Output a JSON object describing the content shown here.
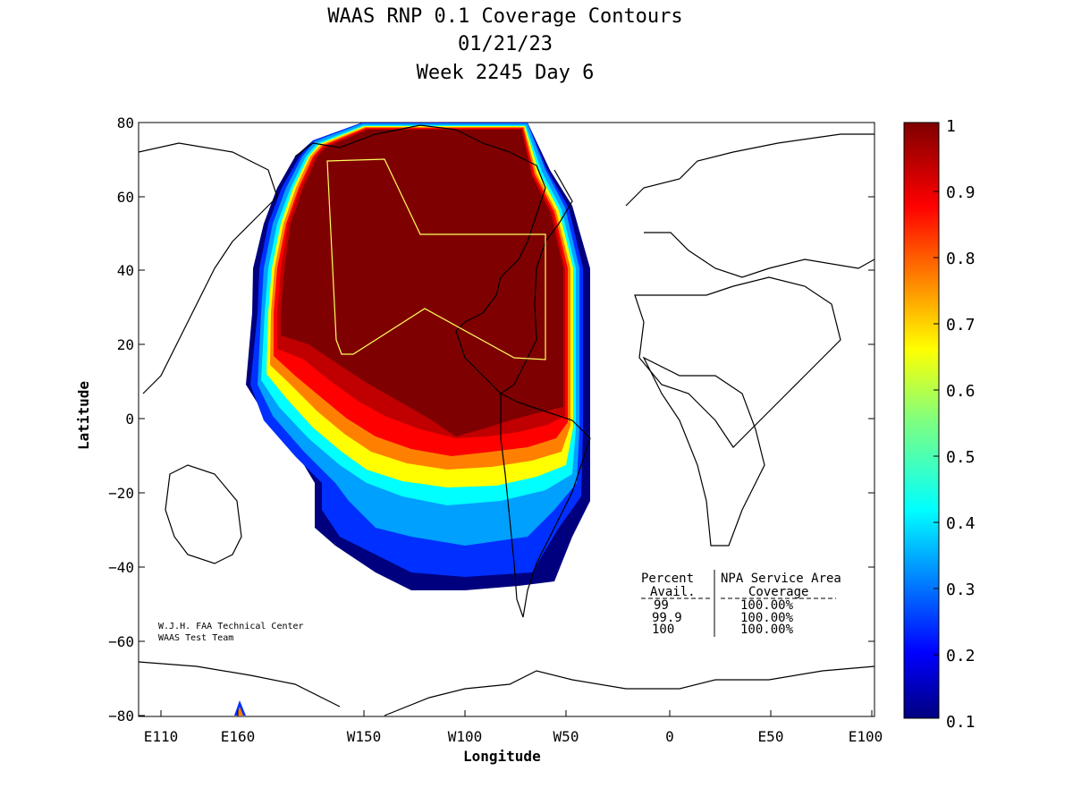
{
  "title": {
    "line1": "WAAS RNP 0.1 Coverage Contours",
    "line2": "01/21/23",
    "line3": "Week 2245 Day 6"
  },
  "axes": {
    "xlabel": "Longitude",
    "ylabel": "Latitude",
    "xticks": [
      "E110",
      "E160",
      "W150",
      "W100",
      "W50",
      "0",
      "E50",
      "E100"
    ],
    "yticks": [
      "80",
      "60",
      "40",
      "20",
      "0",
      "−20",
      "−40",
      "−60",
      "−80"
    ]
  },
  "colorbar": {
    "ticks": [
      "1",
      "0.9",
      "0.8",
      "0.7",
      "0.6",
      "0.5",
      "0.4",
      "0.3",
      "0.2",
      "0.1"
    ],
    "range": [
      0.1,
      1.0
    ]
  },
  "credit": {
    "line1": "W.J.H. FAA Technical Center",
    "line2": "WAAS Test Team"
  },
  "stats_table": {
    "header_col1": "Percent",
    "header_col2": "NPA Service Area",
    "subheader_col1": "Avail.",
    "subheader_col2": "Coverage",
    "rows": [
      {
        "avail": "99",
        "coverage": "100.00%"
      },
      {
        "avail": "99.9",
        "coverage": "100.00%"
      },
      {
        "avail": "100",
        "coverage": "100.00%"
      }
    ]
  },
  "chart_data": {
    "type": "heatmap",
    "title": "WAAS RNP 0.1 Coverage Contours",
    "xlabel": "Longitude",
    "ylabel": "Latitude",
    "ylim": [
      -80,
      80
    ],
    "colorscale": "jet",
    "value_range": [
      0.1,
      1.0
    ],
    "coverage_region": "North America centered, values near 1.0 over CONUS/Canada/Alaska, falling to ~0.1 in the southeast Pacific near 30-45S",
    "colors": {
      "max": "#7f0000",
      "high": "#ff0000",
      "mid": "#ffff00",
      "low": "#00ffff",
      "min": "#00007f"
    }
  }
}
